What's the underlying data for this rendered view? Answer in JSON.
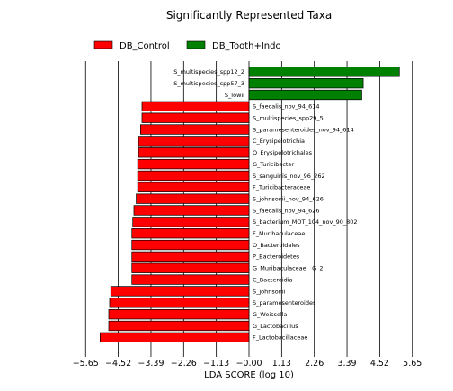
{
  "chart_data": {
    "type": "bar",
    "orientation": "horizontal",
    "title": "Significantly Represented Taxa",
    "xlabel": "LDA SCORE (log 10)",
    "xlim": [
      -6.0,
      6.0
    ],
    "xticks": [
      -5.65,
      -4.52,
      -3.39,
      -2.26,
      -1.13,
      0.0,
      1.13,
      2.26,
      3.39,
      4.52,
      5.65
    ],
    "xtick_labels": [
      "−5.65",
      "−4.52",
      "−3.39",
      "−2.26",
      "−1.13",
      "−0.00",
      "1.13",
      "2.26",
      "3.39",
      "4.52",
      "5.65"
    ],
    "grid": "vertical",
    "legend_position": "top-left",
    "series": [
      {
        "name": "DB_Control",
        "color": "#ff0000"
      },
      {
        "name": "DB_Tooth+Indo",
        "color": "#008000"
      }
    ],
    "bars": [
      {
        "label": "S_multispecies_spp12_2",
        "value": 5.2,
        "group": 1
      },
      {
        "label": "S_multispecies_spp57_3",
        "value": 3.95,
        "group": 1
      },
      {
        "label": "S_lowii",
        "value": 3.9,
        "group": 1
      },
      {
        "label": "S_faecalis_nov_94_614",
        "value": -3.7,
        "group": 0
      },
      {
        "label": "S_multispecies_spp29_5",
        "value": -3.7,
        "group": 0
      },
      {
        "label": "S_paramesenteroides_nov_94_614",
        "value": -3.75,
        "group": 0
      },
      {
        "label": "C_Erysipelotrichia",
        "value": -3.82,
        "group": 0
      },
      {
        "label": "O_Erysipelotrichales",
        "value": -3.82,
        "group": 0
      },
      {
        "label": "G_Turicibacter",
        "value": -3.85,
        "group": 0
      },
      {
        "label": "S_sanguinis_nov_96_262",
        "value": -3.85,
        "group": 0
      },
      {
        "label": "F_Turicibacteraceae",
        "value": -3.85,
        "group": 0
      },
      {
        "label": "S_johnsonii_nov_94_626",
        "value": -3.9,
        "group": 0
      },
      {
        "label": "S_faecalis_nov_94_626",
        "value": -3.98,
        "group": 0
      },
      {
        "label": "S_bacterium_MOT_104_nov_90_802",
        "value": -4.02,
        "group": 0
      },
      {
        "label": "F_Muribaculaceae",
        "value": -4.05,
        "group": 0
      },
      {
        "label": "O_Bacteroidales",
        "value": -4.05,
        "group": 0
      },
      {
        "label": "P_Bacteroidetes",
        "value": -4.05,
        "group": 0
      },
      {
        "label": "G_Muribaculaceae__G_2_",
        "value": -4.05,
        "group": 0
      },
      {
        "label": "C_Bacteroidia",
        "value": -4.05,
        "group": 0
      },
      {
        "label": "S_johnsonii",
        "value": -4.78,
        "group": 0
      },
      {
        "label": "S_paramesenteroides",
        "value": -4.82,
        "group": 0
      },
      {
        "label": "G_Weissella",
        "value": -4.85,
        "group": 0
      },
      {
        "label": "G_Lactobacillus",
        "value": -4.85,
        "group": 0
      },
      {
        "label": "F_Lactobacillaceae",
        "value": -5.15,
        "group": 0
      }
    ]
  }
}
